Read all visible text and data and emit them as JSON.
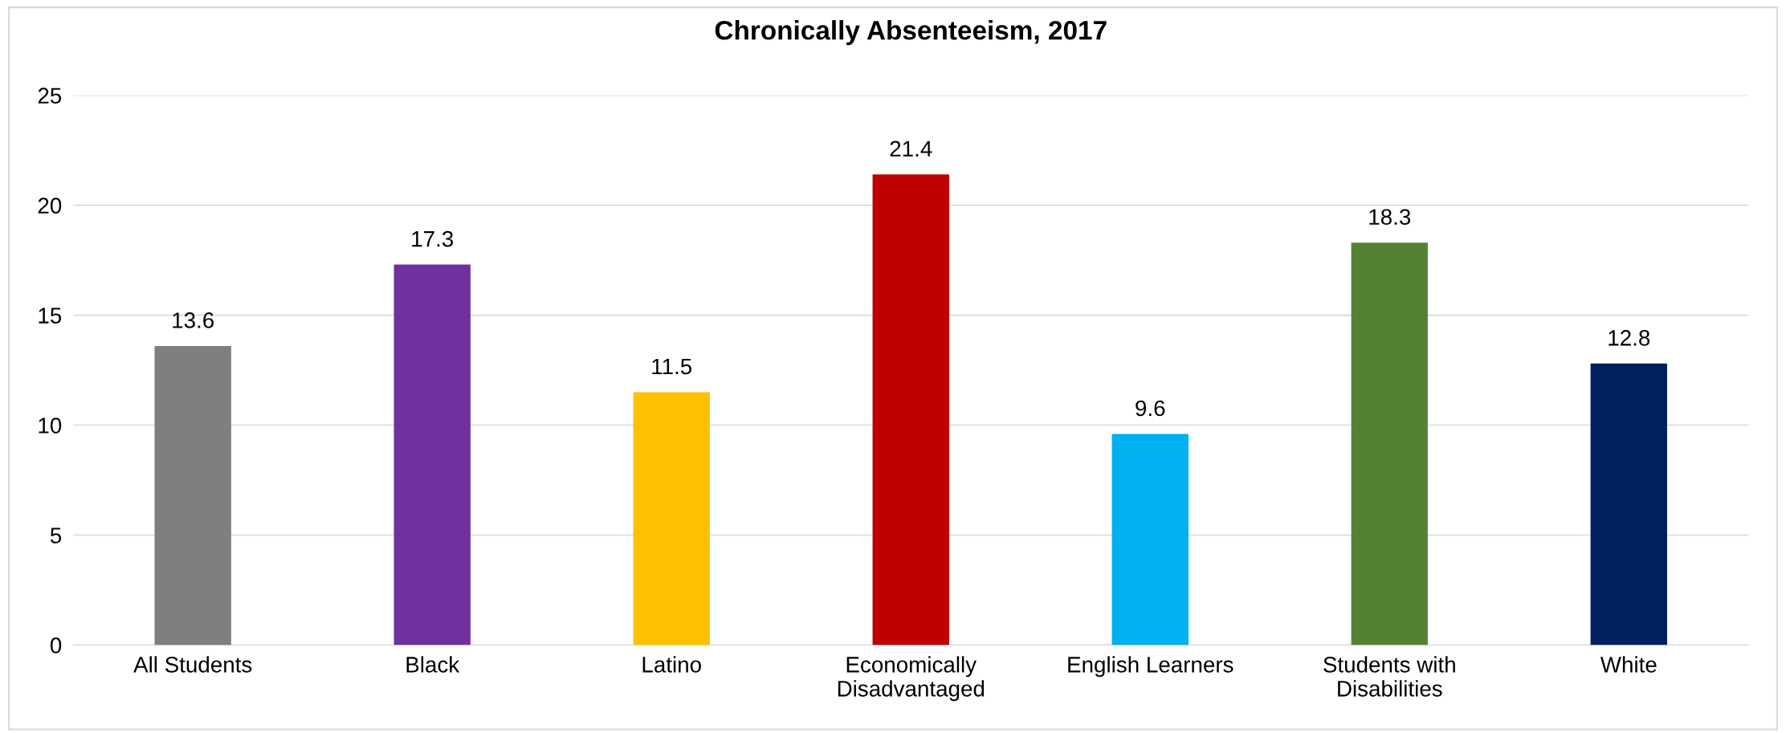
{
  "chart_data": {
    "type": "bar",
    "title": "Chronically Absenteeism, 2017",
    "categories": [
      "All Students",
      "Black",
      "Latino",
      "Economically\nDisadvantaged",
      "English Learners",
      "Students with\nDisabilities",
      "White"
    ],
    "values": [
      13.6,
      17.3,
      11.5,
      21.4,
      9.6,
      18.3,
      12.8
    ],
    "colors": [
      "#7f7f7f",
      "#7030a0",
      "#ffc000",
      "#c00000",
      "#00b0f0",
      "#548235",
      "#002060"
    ],
    "ylim": [
      0,
      25
    ],
    "yticks": [
      0,
      5,
      10,
      15,
      20,
      25
    ],
    "grid": "y",
    "data_labels": true
  }
}
